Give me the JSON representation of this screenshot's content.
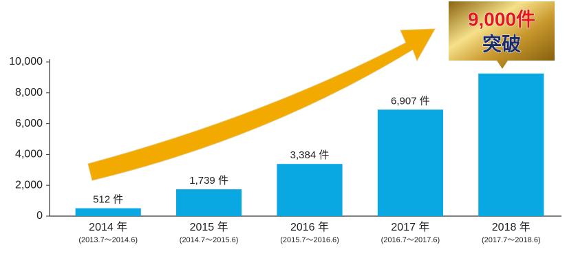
{
  "chart_data": {
    "type": "bar",
    "categories": [
      "2014 年",
      "2015 年",
      "2016 年",
      "2017 年",
      "2018 年"
    ],
    "periods": [
      "(2013.7～2014.6)",
      "(2014.7～2015.6)",
      "(2015.7～2016.6)",
      "(2016.7～2017.6)",
      "(2017.7～2018.6)"
    ],
    "values": [
      512,
      1739,
      3384,
      6907,
      9250
    ],
    "value_labels": [
      "512 件",
      "1,739 件",
      "3,384 件",
      "6,907 件",
      null
    ],
    "color": "#0aa8e2",
    "ylim": [
      0,
      10000
    ],
    "yticks": [
      0,
      {
        "value": 2000,
        "label": "2,000"
      },
      {
        "value": 4000,
        "label": "4,000"
      },
      {
        "value": 6000,
        "label": "6,000"
      },
      {
        "value": 8000,
        "label": "8,000"
      },
      {
        "value": 10000,
        "label": "10,000"
      }
    ],
    "grid": false,
    "annotations": [
      "9,000件",
      "突破"
    ]
  }
}
